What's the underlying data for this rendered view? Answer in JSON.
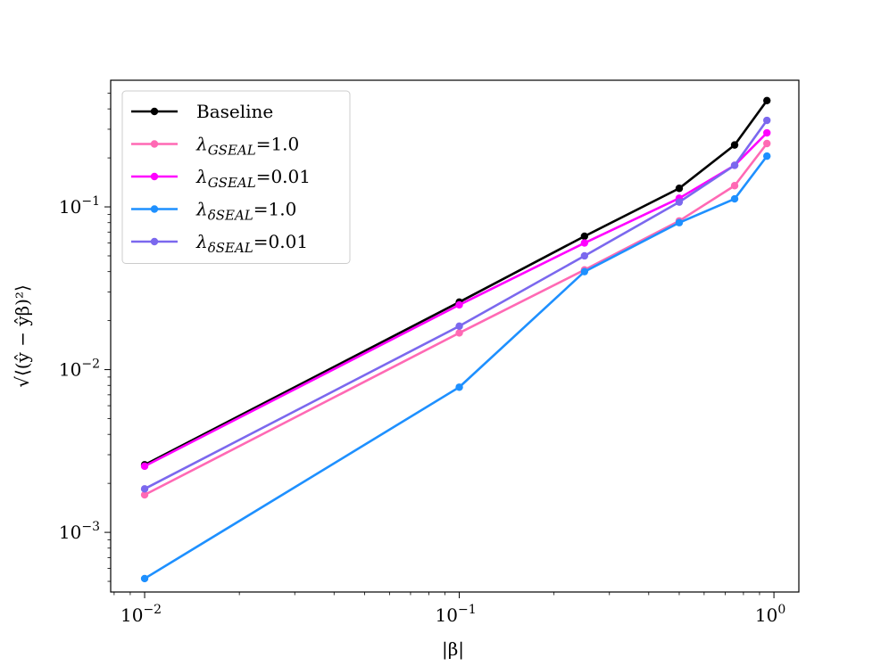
{
  "chart_data": {
    "type": "line",
    "title": "",
    "xlabel": "|β|",
    "ylabel": "√⟨(ŷ − ŷβ)²⟩",
    "xscale": "log",
    "yscale": "log",
    "xlim": [
      0.0078,
      1.2
    ],
    "ylim": [
      0.00043,
      0.6
    ],
    "x": [
      0.01,
      0.1,
      0.25,
      0.5,
      0.75,
      0.95
    ],
    "xticks": [
      {
        "value": 0.01,
        "base": "10",
        "exp": "−2"
      },
      {
        "value": 0.1,
        "base": "10",
        "exp": "−1"
      },
      {
        "value": 1,
        "base": "10",
        "exp": "0"
      }
    ],
    "yticks": [
      {
        "value": 0.001,
        "base": "10",
        "exp": "−3"
      },
      {
        "value": 0.01,
        "base": "10",
        "exp": "−2"
      },
      {
        "value": 0.1,
        "base": "10",
        "exp": "−1"
      }
    ],
    "legend_position": "top-left",
    "series": [
      {
        "name": "Baseline",
        "sym": "",
        "sub": "",
        "rest": "Baseline",
        "color": "#000000",
        "values": [
          0.0026,
          0.026,
          0.066,
          0.13,
          0.24,
          0.45
        ]
      },
      {
        "name": "λGSEAL=1.0",
        "sym": "λ",
        "sub": "GSEAL",
        "rest": "=1.0",
        "color": "#ff69b4",
        "values": [
          0.0017,
          0.0168,
          0.041,
          0.082,
          0.135,
          0.245
        ]
      },
      {
        "name": "λGSEAL=0.01",
        "sym": "λ",
        "sub": "GSEAL",
        "rest": "=0.01",
        "color": "#ff00ff",
        "values": [
          0.00255,
          0.025,
          0.06,
          0.113,
          0.18,
          0.285
        ]
      },
      {
        "name": "λδSEAL=1.0",
        "sym": "λ",
        "sub": "δSEAL",
        "rest": "=1.0",
        "color": "#1e90ff",
        "values": [
          0.00052,
          0.0078,
          0.04,
          0.08,
          0.112,
          0.205
        ]
      },
      {
        "name": "λδSEAL=0.01",
        "sym": "λ",
        "sub": "δSEAL",
        "rest": "=0.01",
        "color": "#7b68ee",
        "values": [
          0.00185,
          0.0185,
          0.05,
          0.107,
          0.18,
          0.34
        ]
      }
    ]
  }
}
